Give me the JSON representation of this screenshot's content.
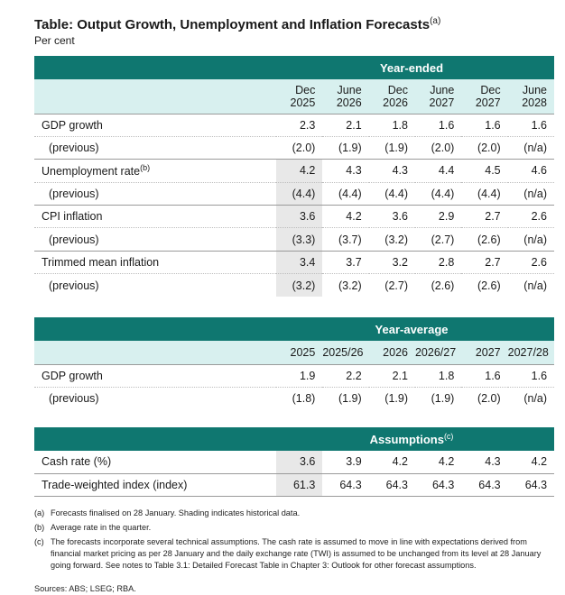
{
  "title": "Table: Output Growth, Unemployment and Inflation Forecasts",
  "title_note": "(a)",
  "subtitle": "Per cent",
  "year_ended": {
    "section_label": "Year-ended",
    "headers": [
      {
        "line1": "Dec",
        "line2": "2025"
      },
      {
        "line1": "June",
        "line2": "2026"
      },
      {
        "line1": "Dec",
        "line2": "2026"
      },
      {
        "line1": "June",
        "line2": "2027"
      },
      {
        "line1": "Dec",
        "line2": "2027"
      },
      {
        "line1": "June",
        "line2": "2028"
      }
    ],
    "rows": [
      {
        "label": "GDP growth",
        "note": "",
        "values": [
          "2.3",
          "2.1",
          "1.8",
          "1.6",
          "1.6",
          "1.6"
        ]
      },
      {
        "label": "(previous)",
        "note": "",
        "values": [
          "(2.0)",
          "(1.9)",
          "(1.9)",
          "(2.0)",
          "(2.0)",
          "(n/a)"
        ]
      },
      {
        "label": "Unemployment rate",
        "note": "(b)",
        "values": [
          "4.2",
          "4.3",
          "4.3",
          "4.4",
          "4.5",
          "4.6"
        ]
      },
      {
        "label": "(previous)",
        "note": "",
        "values": [
          "(4.4)",
          "(4.4)",
          "(4.4)",
          "(4.4)",
          "(4.4)",
          "(n/a)"
        ]
      },
      {
        "label": "CPI inflation",
        "note": "",
        "values": [
          "3.6",
          "4.2",
          "3.6",
          "2.9",
          "2.7",
          "2.6"
        ]
      },
      {
        "label": "(previous)",
        "note": "",
        "values": [
          "(3.3)",
          "(3.7)",
          "(3.2)",
          "(2.7)",
          "(2.6)",
          "(n/a)"
        ]
      },
      {
        "label": "Trimmed mean inflation",
        "note": "",
        "values": [
          "3.4",
          "3.7",
          "3.2",
          "2.8",
          "2.7",
          "2.6"
        ]
      },
      {
        "label": "(previous)",
        "note": "",
        "values": [
          "(3.2)",
          "(3.2)",
          "(2.7)",
          "(2.6)",
          "(2.6)",
          "(n/a)"
        ]
      }
    ]
  },
  "year_average": {
    "section_label": "Year-average",
    "headers": [
      "2025",
      "2025/26",
      "2026",
      "2026/27",
      "2027",
      "2027/28"
    ],
    "rows": [
      {
        "label": "GDP growth",
        "values": [
          "1.9",
          "2.2",
          "2.1",
          "1.8",
          "1.6",
          "1.6"
        ]
      },
      {
        "label": "(previous)",
        "values": [
          "(1.8)",
          "(1.9)",
          "(1.9)",
          "(1.9)",
          "(2.0)",
          "(n/a)"
        ]
      }
    ]
  },
  "assumptions": {
    "section_label": "Assumptions",
    "section_note": "(c)",
    "rows": [
      {
        "label": "Cash rate (%)",
        "values": [
          "3.6",
          "3.9",
          "4.2",
          "4.2",
          "4.3",
          "4.2"
        ]
      },
      {
        "label": "Trade-weighted index (index)",
        "values": [
          "61.3",
          "64.3",
          "64.3",
          "64.3",
          "64.3",
          "64.3"
        ]
      }
    ]
  },
  "notes": [
    {
      "key": "(a)",
      "text": "Forecasts finalised on 28 January. Shading indicates historical data."
    },
    {
      "key": "(b)",
      "text": "Average rate in the quarter."
    },
    {
      "key": "(c)",
      "text": "The forecasts incorporate several technical assumptions. The cash rate is assumed to move in line with expectations derived from financial market pricing as per 28 January and the daily exchange rate (TWI) is assumed to be unchanged from its level at 28 January going forward. See notes to Table 3.1: Detailed Forecast Table in Chapter 3: Outlook for other forecast assumptions."
    }
  ],
  "sources": "Sources: ABS; LSEG; RBA.",
  "colors": {
    "header_bar": "#0f7770",
    "header_light": "#d8f0ef",
    "historical_shade": "#e8e8e8"
  }
}
